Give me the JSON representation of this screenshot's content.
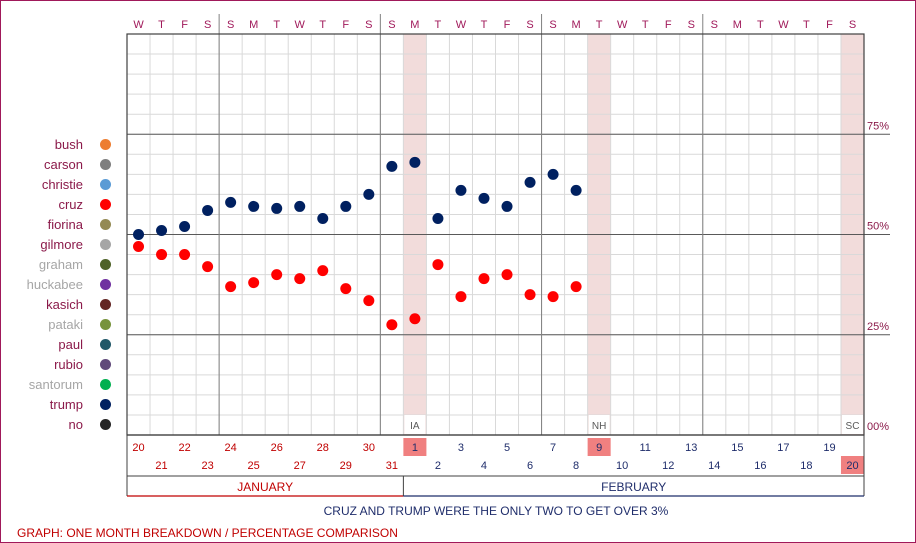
{
  "chart_data": {
    "type": "scatter",
    "caption": "CRUZ AND TRUMP WERE THE ONLY TWO TO GET OVER 3%",
    "footer": "GRAPH: ONE MONTH BREAKDOWN / PERCENTAGE COMPARISON",
    "weekdays": [
      "W",
      "T",
      "F",
      "S",
      "S",
      "M",
      "T",
      "W",
      "T",
      "F",
      "S",
      "S",
      "M",
      "T",
      "W",
      "T",
      "F",
      "S",
      "S",
      "M",
      "T",
      "W",
      "T",
      "F",
      "S",
      "S",
      "M",
      "T",
      "W",
      "T",
      "F",
      "S"
    ],
    "dates": [
      20,
      21,
      22,
      23,
      24,
      25,
      26,
      27,
      28,
      29,
      30,
      31,
      1,
      2,
      3,
      4,
      5,
      6,
      7,
      8,
      9,
      10,
      11,
      12,
      13,
      14,
      15,
      16,
      17,
      18,
      19,
      20
    ],
    "months": [
      {
        "label": "JANUARY",
        "start": 0,
        "end": 12
      },
      {
        "label": "FEBRUARY",
        "start": 12,
        "end": 32
      }
    ],
    "events": [
      {
        "label": "IA",
        "day": 12
      },
      {
        "label": "NH",
        "day": 20
      },
      {
        "label": "SC",
        "day": 31
      }
    ],
    "y_ticks": [
      {
        "value": 0,
        "label": "00%"
      },
      {
        "value": 25,
        "label": "25%"
      },
      {
        "value": 50,
        "label": "50%"
      },
      {
        "value": 75,
        "label": "75%"
      }
    ],
    "ylim": [
      0,
      100
    ],
    "legend": [
      {
        "name": "bush",
        "color": "#ed7d31",
        "label_color": "#8b1a4a"
      },
      {
        "name": "carson",
        "color": "#7f7f7f",
        "label_color": "#8b1a4a"
      },
      {
        "name": "christie",
        "color": "#5b9bd5",
        "label_color": "#8b1a4a"
      },
      {
        "name": "cruz",
        "color": "#ff0000",
        "label_color": "#8b1a4a"
      },
      {
        "name": "fiorina",
        "color": "#948a54",
        "label_color": "#8b1a4a"
      },
      {
        "name": "gilmore",
        "color": "#a6a6a6",
        "label_color": "#8b1a4a"
      },
      {
        "name": "graham",
        "color": "#4f6228",
        "label_color": "#a6a6a6"
      },
      {
        "name": "huckabee",
        "color": "#7030a0",
        "label_color": "#a6a6a6"
      },
      {
        "name": "kasich",
        "color": "#632523",
        "label_color": "#8b1a4a"
      },
      {
        "name": "pataki",
        "color": "#77933c",
        "label_color": "#a6a6a6"
      },
      {
        "name": "paul",
        "color": "#215868",
        "label_color": "#8b1a4a"
      },
      {
        "name": "rubio",
        "color": "#60497a",
        "label_color": "#8b1a4a"
      },
      {
        "name": "santorum",
        "color": "#00b050",
        "label_color": "#a6a6a6"
      },
      {
        "name": "trump",
        "color": "#002060",
        "label_color": "#8b1a4a"
      },
      {
        "name": "no",
        "color": "#262626",
        "label_color": "#8b1a4a"
      }
    ],
    "series": [
      {
        "name": "trump",
        "color": "#002060",
        "points": [
          [
            0,
            50
          ],
          [
            1,
            51
          ],
          [
            2,
            52
          ],
          [
            3,
            56
          ],
          [
            4,
            58
          ],
          [
            5,
            57
          ],
          [
            6,
            56.5
          ],
          [
            7,
            57
          ],
          [
            8,
            54
          ],
          [
            9,
            57
          ],
          [
            10,
            60
          ],
          [
            11,
            67
          ],
          [
            12,
            68
          ],
          [
            13,
            54
          ],
          [
            14,
            61
          ],
          [
            15,
            59
          ],
          [
            16,
            57
          ],
          [
            17,
            63
          ],
          [
            18,
            65
          ],
          [
            19,
            61
          ]
        ]
      },
      {
        "name": "cruz",
        "color": "#ff0000",
        "points": [
          [
            0,
            47
          ],
          [
            1,
            45
          ],
          [
            2,
            45
          ],
          [
            3,
            42
          ],
          [
            4,
            37
          ],
          [
            5,
            38
          ],
          [
            6,
            40
          ],
          [
            7,
            39
          ],
          [
            8,
            41
          ],
          [
            9,
            36.5
          ],
          [
            10,
            33.5
          ],
          [
            11,
            27.5
          ],
          [
            12,
            29
          ],
          [
            13,
            42.5
          ],
          [
            14,
            34.5
          ],
          [
            15,
            39
          ],
          [
            16,
            40
          ],
          [
            17,
            35
          ],
          [
            18,
            34.5
          ],
          [
            19,
            37
          ]
        ]
      }
    ]
  }
}
